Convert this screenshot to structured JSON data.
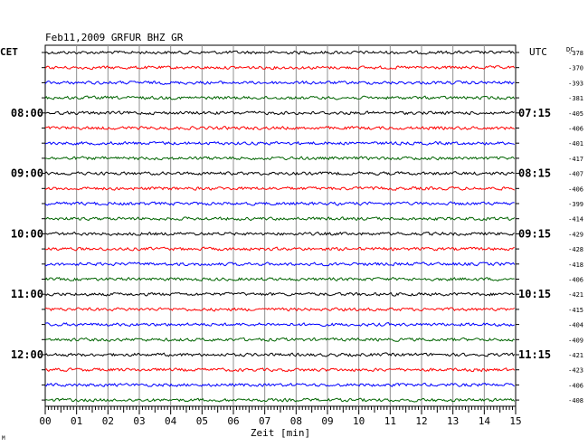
{
  "chart_data": {
    "type": "line",
    "title": "Feb11,2009   GRFUR BHZ GR",
    "left_zone_label": "CET",
    "right_zone_label": "UTC",
    "dc_label": "DC",
    "xlabel": "Zeit [min]",
    "xlim": [
      0,
      15
    ],
    "x_ticks": [
      "00",
      "01",
      "02",
      "03",
      "04",
      "05",
      "06",
      "07",
      "08",
      "09",
      "10",
      "11",
      "12",
      "13",
      "14",
      "15"
    ],
    "trace_colors": [
      "#000000",
      "#ff0000",
      "#0000ff",
      "#006400"
    ],
    "cet_hour_labels": [
      {
        "row": 4,
        "label": "08:00"
      },
      {
        "row": 8,
        "label": "09:00"
      },
      {
        "row": 12,
        "label": "10:00"
      },
      {
        "row": 16,
        "label": "11:00"
      },
      {
        "row": 20,
        "label": "12:00"
      }
    ],
    "utc_hour_labels": [
      {
        "row": 4,
        "label": "07:15"
      },
      {
        "row": 8,
        "label": "08:15"
      },
      {
        "row": 12,
        "label": "09:15"
      },
      {
        "row": 16,
        "label": "10:15"
      },
      {
        "row": 20,
        "label": "11:15"
      }
    ],
    "dc_offsets": [
      "-378",
      "-370",
      "-393",
      "-381",
      "-405",
      "-406",
      "-401",
      "-417",
      "-407",
      "-406",
      "-399",
      "-414",
      "-429",
      "-428",
      "-418",
      "-406",
      "-421",
      "-415",
      "-404",
      "-409",
      "-421",
      "-423",
      "-406",
      "-408"
    ],
    "series": [
      {
        "color_index": 0,
        "noise_amplitude": 1
      },
      {
        "color_index": 1,
        "noise_amplitude": 1
      },
      {
        "color_index": 2,
        "noise_amplitude": 1
      },
      {
        "color_index": 3,
        "noise_amplitude": 1
      }
    ],
    "grid": true
  },
  "footer_mark": "M"
}
